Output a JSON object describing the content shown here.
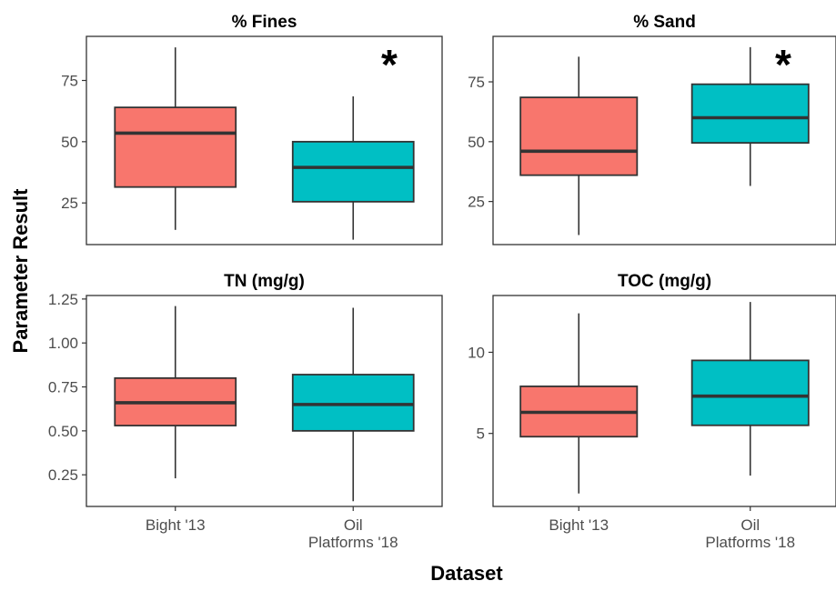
{
  "figure": {
    "ylabel": "Parameter Result",
    "xlabel": "Dataset",
    "categories": [
      "Bight '13",
      "Oil\nPlatforms '18"
    ],
    "colors": {
      "Bight '13": "#F8766D",
      "Oil Platforms '18": "#00BFC4",
      "box_stroke": "#333333",
      "median_stroke": "#333333",
      "panel_border": "#333333",
      "text": "#4d4d4d",
      "title": "#000000"
    }
  },
  "chart_data": [
    {
      "type": "boxplot",
      "title": "% Fines",
      "significance": "*",
      "ylim": [
        8,
        93
      ],
      "yticks": [
        25,
        50,
        75
      ],
      "categories": [
        "Bight '13",
        "Oil Platforms '18"
      ],
      "boxes": [
        {
          "category": "Bight '13",
          "min": 14,
          "q1": 31.5,
          "median": 53.5,
          "q3": 64,
          "max": 88.5
        },
        {
          "category": "Oil Platforms '18",
          "min": 10,
          "q1": 25.5,
          "median": 39.5,
          "q3": 50,
          "max": 68.5
        }
      ]
    },
    {
      "type": "boxplot",
      "title": "% Sand",
      "significance": "*",
      "ylim": [
        7,
        94
      ],
      "yticks": [
        25,
        50,
        75
      ],
      "categories": [
        "Bight '13",
        "Oil Platforms '18"
      ],
      "boxes": [
        {
          "category": "Bight '13",
          "min": 11,
          "q1": 36,
          "median": 46,
          "q3": 68.5,
          "max": 85.5
        },
        {
          "category": "Oil Platforms '18",
          "min": 31.5,
          "q1": 49.5,
          "median": 60,
          "q3": 74,
          "max": 89.5
        }
      ]
    },
    {
      "type": "boxplot",
      "title": "TN (mg/g)",
      "significance": "",
      "ylim": [
        0.07,
        1.27
      ],
      "yticks": [
        0.25,
        0.5,
        0.75,
        1.0,
        1.25
      ],
      "ytick_labels": [
        "0.25",
        "0.50",
        "0.75",
        "1.00",
        "1.25"
      ],
      "categories": [
        "Bight '13",
        "Oil Platforms '18"
      ],
      "boxes": [
        {
          "category": "Bight '13",
          "min": 0.23,
          "q1": 0.53,
          "median": 0.66,
          "q3": 0.8,
          "max": 1.21
        },
        {
          "category": "Oil Platforms '18",
          "min": 0.1,
          "q1": 0.5,
          "median": 0.65,
          "q3": 0.82,
          "max": 1.2
        }
      ]
    },
    {
      "type": "boxplot",
      "title": "TOC (mg/g)",
      "significance": "",
      "ylim": [
        0.5,
        13.5
      ],
      "yticks": [
        5,
        10
      ],
      "categories": [
        "Bight '13",
        "Oil Platforms '18"
      ],
      "boxes": [
        {
          "category": "Bight '13",
          "min": 1.3,
          "q1": 4.8,
          "median": 6.3,
          "q3": 7.9,
          "max": 12.4
        },
        {
          "category": "Oil Platforms '18",
          "min": 2.4,
          "q1": 5.5,
          "median": 7.3,
          "q3": 9.5,
          "max": 13.1
        }
      ]
    }
  ]
}
